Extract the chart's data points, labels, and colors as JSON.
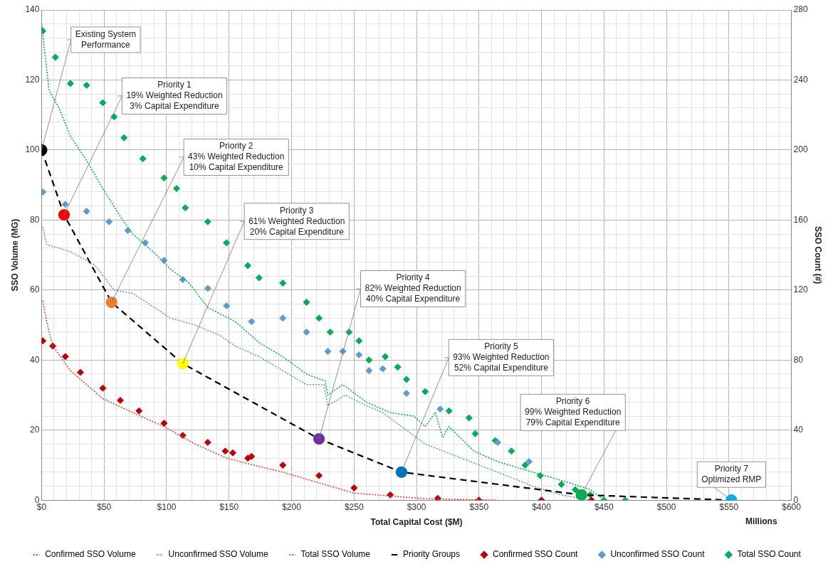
{
  "chart_data": {
    "type": "line",
    "xlabel": "Total Capital Cost ($M)",
    "ylabel": "SSO Volume (MG)",
    "y2label": "SSO Count (#)",
    "xlim": [
      0,
      600
    ],
    "xticks": [
      {
        "value": 0,
        "label": "$0"
      },
      {
        "value": 10,
        "label": null
      },
      {
        "value": 20,
        "label": null
      },
      {
        "value": 30,
        "label": null
      },
      {
        "value": 40,
        "label": null
      },
      {
        "value": 50,
        "label": "$50"
      },
      {
        "value": 60,
        "label": null
      },
      {
        "value": 70,
        "label": null
      },
      {
        "value": 80,
        "label": null
      },
      {
        "value": 90,
        "label": null
      },
      {
        "value": 100,
        "label": "$100"
      },
      {
        "value": 110,
        "label": null
      },
      {
        "value": 120,
        "label": null
      },
      {
        "value": 130,
        "label": null
      },
      {
        "value": 140,
        "label": null
      },
      {
        "value": 150,
        "label": "$150"
      },
      {
        "value": 160,
        "label": null
      },
      {
        "value": 170,
        "label": null
      },
      {
        "value": 180,
        "label": null
      },
      {
        "value": 190,
        "label": null
      },
      {
        "value": 200,
        "label": "$200"
      },
      {
        "value": 210,
        "label": null
      },
      {
        "value": 220,
        "label": null
      },
      {
        "value": 230,
        "label": null
      },
      {
        "value": 240,
        "label": null
      },
      {
        "value": 250,
        "label": "$250"
      },
      {
        "value": 260,
        "label": null
      },
      {
        "value": 270,
        "label": null
      },
      {
        "value": 280,
        "label": null
      },
      {
        "value": 290,
        "label": null
      },
      {
        "value": 300,
        "label": "$300"
      },
      {
        "value": 310,
        "label": null
      },
      {
        "value": 320,
        "label": null
      },
      {
        "value": 330,
        "label": null
      },
      {
        "value": 340,
        "label": null
      },
      {
        "value": 350,
        "label": "$350"
      },
      {
        "value": 360,
        "label": null
      },
      {
        "value": 370,
        "label": null
      },
      {
        "value": 380,
        "label": null
      },
      {
        "value": 390,
        "label": null
      },
      {
        "value": 400,
        "label": "$400"
      },
      {
        "value": 410,
        "label": null
      },
      {
        "value": 420,
        "label": null
      },
      {
        "value": 430,
        "label": null
      },
      {
        "value": 440,
        "label": null
      },
      {
        "value": 450,
        "label": "$450"
      },
      {
        "value": 460,
        "label": null
      },
      {
        "value": 470,
        "label": null
      },
      {
        "value": 480,
        "label": null
      },
      {
        "value": 490,
        "label": null
      },
      {
        "value": 500,
        "label": "$500"
      },
      {
        "value": 510,
        "label": null
      },
      {
        "value": 520,
        "label": null
      },
      {
        "value": 530,
        "label": null
      },
      {
        "value": 540,
        "label": null
      },
      {
        "value": 550,
        "label": "$550"
      },
      {
        "value": 560,
        "label": null
      },
      {
        "value": 570,
        "label": null
      },
      {
        "value": 580,
        "label": null
      },
      {
        "value": 590,
        "label": null
      },
      {
        "value": 600,
        "label": "$600"
      }
    ],
    "ylim": [
      0,
      140
    ],
    "yticks": [
      0,
      {
        "value": 4,
        "label": null
      },
      {
        "value": 8,
        "label": null
      },
      {
        "value": 12,
        "label": null
      },
      {
        "value": 16,
        "label": null
      },
      20,
      {
        "value": 24,
        "label": null
      },
      {
        "value": 28,
        "label": null
      },
      {
        "value": 32,
        "label": null
      },
      {
        "value": 36,
        "label": null
      },
      40,
      {
        "value": 44,
        "label": null
      },
      {
        "value": 48,
        "label": null
      },
      {
        "value": 52,
        "label": null
      },
      {
        "value": 56,
        "label": null
      },
      60,
      {
        "value": 64,
        "label": null
      },
      {
        "value": 68,
        "label": null
      },
      {
        "value": 72,
        "label": null
      },
      {
        "value": 76,
        "label": null
      },
      80,
      {
        "value": 84,
        "label": null
      },
      {
        "value": 88,
        "label": null
      },
      {
        "value": 92,
        "label": null
      },
      {
        "value": 96,
        "label": null
      },
      100,
      {
        "value": 104,
        "label": null
      },
      {
        "value": 108,
        "label": null
      },
      {
        "value": 112,
        "label": null
      },
      {
        "value": 116,
        "label": null
      },
      120,
      {
        "value": 124,
        "label": null
      },
      {
        "value": 128,
        "label": null
      },
      {
        "value": 132,
        "label": null
      },
      {
        "value": 136,
        "label": null
      },
      140
    ],
    "y2lim": [
      0,
      280
    ],
    "y2ticks": [
      0,
      40,
      80,
      120,
      160,
      200,
      240,
      280
    ],
    "grid": true,
    "legend": "bottom",
    "series": [
      {
        "name": "Confirmed SSO Volume",
        "color": "#e8413c",
        "line_style": "dotted",
        "marker": "none",
        "x": [
          1,
          4,
          9,
          23,
          49,
          73,
          98,
          123,
          148,
          170,
          193,
          212,
          231,
          250,
          307,
          365
        ],
        "values": [
          57,
          51,
          44,
          37,
          29,
          25,
          21,
          16,
          12,
          10,
          8,
          6,
          4,
          2,
          0.4,
          0
        ]
      },
      {
        "name": "Unconfirmed SSO Volume",
        "color": "#5b9bd5",
        "line_style": "dotted",
        "marker": "none",
        "x": [
          1,
          4,
          23,
          43,
          58,
          73,
          86,
          103,
          123,
          143,
          155,
          174,
          193,
          212,
          226,
          229,
          243,
          260,
          273,
          307,
          336,
          365,
          393,
          416,
          439
        ],
        "values": [
          78,
          73,
          71,
          67,
          60,
          59,
          56,
          52,
          50,
          47,
          44,
          41,
          37,
          33,
          33,
          27,
          30,
          27,
          25,
          16,
          12,
          8,
          4,
          1.5,
          0
        ]
      },
      {
        "name": "Total SSO Volume",
        "color": "#00b050",
        "line_style": "dotted",
        "marker": "none",
        "x": [
          0,
          6,
          14,
          23,
          36,
          49,
          63,
          73,
          89,
          103,
          118,
          133,
          155,
          174,
          193,
          212,
          227,
          229,
          241,
          260,
          279,
          298,
          307,
          315,
          321,
          326,
          346,
          365,
          393,
          422,
          439,
          450
        ],
        "values": [
          136,
          117,
          112,
          104,
          97,
          89,
          81,
          76,
          71,
          66,
          62,
          55,
          51,
          45,
          41,
          36,
          34,
          30,
          33,
          28,
          25,
          24,
          21,
          25,
          18,
          21,
          14,
          11,
          8,
          5,
          3,
          0
        ]
      },
      {
        "name": "Priority Groups",
        "color": "#000000",
        "line_style": "dashed",
        "marker": "circle",
        "colors": [
          "#000000",
          "#ff0000",
          "#ed7d31",
          "#ffff00",
          "#7030a0",
          "#0070c0",
          "#00b050",
          "#00b0f0"
        ],
        "x": [
          0,
          18,
          56,
          113,
          222,
          288,
          432,
          552
        ],
        "values": [
          100,
          81.5,
          56.5,
          39,
          17.5,
          8,
          1.5,
          0
        ]
      },
      {
        "name": "Confirmed SSO Count",
        "type": "scatter",
        "axis": "y2",
        "color": "#c00000",
        "marker": "diamond",
        "x": [
          1,
          9,
          19,
          31,
          49,
          63,
          78,
          98,
          113,
          133,
          147,
          153,
          165,
          168,
          193,
          222,
          250,
          279,
          317,
          350,
          400,
          440
        ],
        "values": [
          91,
          88,
          82,
          73,
          64,
          57,
          51,
          44,
          37,
          33,
          28,
          27,
          24,
          25,
          20,
          14,
          7,
          3,
          1,
          0,
          0,
          0
        ]
      },
      {
        "name": "Unconfirmed SSO Count",
        "type": "scatter",
        "axis": "y2",
        "color": "#5b9bd5",
        "marker": "diamond",
        "x": [
          1,
          19,
          36,
          54,
          69,
          83,
          98,
          113,
          133,
          148,
          168,
          193,
          212,
          229,
          241,
          254,
          262,
          273,
          292,
          319,
          365,
          390
        ],
        "values": [
          176,
          169,
          165,
          159,
          154,
          147,
          137,
          126,
          121,
          111,
          102,
          104,
          96,
          85,
          85,
          83,
          74,
          75,
          61,
          52,
          33,
          22
        ]
      },
      {
        "name": "Total SSO Count",
        "type": "scatter",
        "axis": "y2",
        "color": "#00b050",
        "marker": "diamond",
        "x": [
          1,
          11,
          23,
          36,
          49,
          58,
          66,
          81,
          98,
          108,
          115,
          133,
          148,
          165,
          174,
          193,
          212,
          222,
          231,
          246,
          254,
          262,
          275,
          285,
          292,
          307,
          326,
          342,
          347,
          363,
          376,
          387,
          399,
          416,
          427,
          439,
          450,
          467
        ],
        "values": [
          268,
          253,
          238,
          237,
          227,
          219,
          207,
          195,
          184,
          178,
          167,
          159,
          147,
          134,
          127,
          124,
          113,
          104,
          96,
          96,
          91,
          80,
          82,
          76,
          69,
          62,
          51,
          47,
          38,
          34,
          28,
          20,
          14,
          9,
          6,
          3,
          0,
          0
        ]
      }
    ],
    "annotations": [
      {
        "text": "Existing System\nPerformance",
        "x": 0,
        "y": 100
      },
      {
        "text": "Priority 1\n19% Weighted Reduction\n3% Capital Expenditure",
        "x": 18,
        "y": 81.5
      },
      {
        "text": "Priority 2\n43% Weighted Reduction\n10% Capital Expenditure",
        "x": 56,
        "y": 56.5
      },
      {
        "text": "Priority 3\n61% Weighted Reduction\n20% Capital Expenditure",
        "x": 113,
        "y": 39
      },
      {
        "text": "Priority 4\n82% Weighted Reduction\n40% Capital Expenditure",
        "x": 222,
        "y": 17.5
      },
      {
        "text": "Priority 5\n93% Weighted Reduction\n52% Capital Expenditure",
        "x": 288,
        "y": 8
      },
      {
        "text": "Priority 6\n99% Weighted Reduction\n79% Capital Expenditure",
        "x": 432,
        "y": 1.5
      },
      {
        "text": "Priority 7\nOptimized RMP",
        "x": 552,
        "y": 0
      },
      "Millions"
    ]
  }
}
